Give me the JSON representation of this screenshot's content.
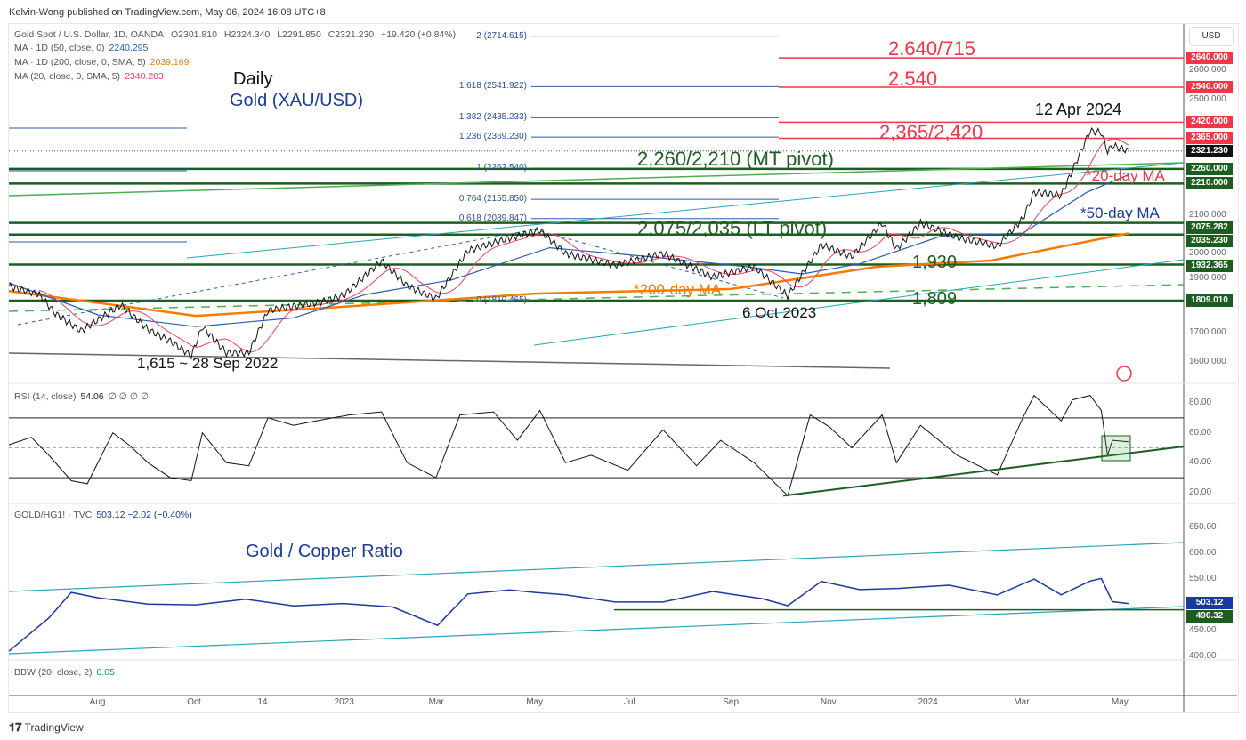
{
  "header": {
    "published": "Kelvin-Wong published on TradingView.com, May 06, 2024 16:08 UTC+8"
  },
  "legend": {
    "symbol": "Gold Spot / U.S. Dollar, 1D, OANDA",
    "open": "O2301.810",
    "high": "H2324.340",
    "low": "L2291.850",
    "close": "C2321.230",
    "change": "+19.420 (+0.84%)",
    "ma50_label": "MA · 1D (50, close, 0)",
    "ma50_value": "2240.295",
    "ma200_label": "MA · 1D (200, close, 0, SMA, 5)",
    "ma200_value": "2039.169",
    "ma20_label": "MA (20, close, 0, SMA, 5)",
    "ma20_value": "2340.283",
    "rsi_label": "RSI (14, close)",
    "rsi_value": "54.06",
    "rsi_extra": "∅ ∅ ∅ ∅",
    "ratio_label": "GOLD/HG1! · TVC",
    "ratio_value": "503.12  −2.02 (−0.40%)",
    "bbw_label": "BBW (20, close, 2)",
    "bbw_value": "0.05"
  },
  "colors": {
    "ma20": "#f23b6b",
    "ma50": "#2a5db0",
    "ma200": "#f57c00",
    "red": "#f23645",
    "green": "#1b5e20",
    "teal": "#26a6b8",
    "ratio": "#1a3a9e"
  },
  "annotations": {
    "daily": "Daily",
    "title": "Gold (XAU/USD)",
    "r1": "2,640/715",
    "r2": "2,540",
    "r3": "2,365/2,420",
    "apr": "12 Apr 2024",
    "mt": "2,260/2,210 (MT pivot)",
    "ma20": "*20-day MA",
    "ma50": "*50-day MA",
    "lt": "2,075/2,035 (LT pivot)",
    "s1930": "1,930",
    "ma200": "*200-day MA",
    "s1809": "1,809",
    "oct": "6 Oct 2023",
    "sep": "1,615 ~ 28 Sep 2022",
    "ratio_title": "Gold / Copper Ratio"
  },
  "fib_levels": [
    {
      "label": "2 (2714.615)",
      "price": 2714.615
    },
    {
      "label": "1.618 (2541.922)",
      "price": 2541.922
    },
    {
      "label": "1.382 (2435.233)",
      "price": 2435.233
    },
    {
      "label": "1.236 (2369.230)",
      "price": 2369.23
    },
    {
      "label": "1 (2262.540)",
      "price": 2262.54
    },
    {
      "label": "0.764 (2155.850)",
      "price": 2155.85
    },
    {
      "label": "0.618 (2089.847)",
      "price": 2089.847
    },
    {
      "label": "0 (1810.465)",
      "price": 1810.465
    }
  ],
  "axis": {
    "currency": "USD",
    "price_ticks": [
      "2600.000",
      "2500.000",
      "2100.000",
      "2000.000",
      "1900.000",
      "1700.000",
      "1600.000"
    ],
    "price_tags": [
      {
        "label": "2640.000",
        "price": 2640,
        "color": "#f23645"
      },
      {
        "label": "2540.000",
        "price": 2540,
        "color": "#f23645"
      },
      {
        "label": "2420.000",
        "price": 2420,
        "color": "#f23645"
      },
      {
        "label": "2365.000",
        "price": 2365,
        "color": "#f23645"
      },
      {
        "label": "2321.230",
        "price": 2321.23,
        "color": "#111111"
      },
      {
        "label": "2260.000",
        "price": 2260,
        "color": "#1b5e20"
      },
      {
        "label": "2210.000",
        "price": 2210,
        "color": "#1b5e20"
      },
      {
        "label": "2075.282",
        "price": 2075.282,
        "color": "#1b5e20"
      },
      {
        "label": "2035.230",
        "price": 2035.23,
        "color": "#1b5e20"
      },
      {
        "label": "1932.365",
        "price": 1932.365,
        "color": "#1b5e20"
      },
      {
        "label": "1809.010",
        "price": 1809.01,
        "color": "#1b5e20"
      }
    ],
    "rsi_ticks": [
      "80.00",
      "60.00",
      "40.00",
      "20.00"
    ],
    "ratio_ticks": [
      "650.00",
      "600.00",
      "550.00",
      "450.00",
      "400.00"
    ],
    "ratio_tags": [
      {
        "label": "503.12",
        "value": 503.12,
        "color": "#1a3a9e"
      },
      {
        "label": "490.32",
        "value": 490.32,
        "color": "#1b5e20"
      }
    ],
    "time_labels": [
      {
        "label": "Aug",
        "date": "2022-08-01"
      },
      {
        "label": "Oct",
        "date": "2022-10-01"
      },
      {
        "label": "14",
        "date": "2022-11-14"
      },
      {
        "label": "2023",
        "date": "2023-01-01"
      },
      {
        "label": "Mar",
        "date": "2023-03-01"
      },
      {
        "label": "May",
        "date": "2023-05-01"
      },
      {
        "label": "Jul",
        "date": "2023-07-01"
      },
      {
        "label": "Sep",
        "date": "2023-09-01"
      },
      {
        "label": "Nov",
        "date": "2023-11-01"
      },
      {
        "label": "2024",
        "date": "2024-01-01"
      },
      {
        "label": "Mar",
        "date": "2024-03-01"
      },
      {
        "label": "May",
        "date": "2024-05-01"
      }
    ]
  },
  "footer": {
    "brand": "TradingView"
  },
  "chart_data": [
    {
      "type": "line",
      "title": "Gold Spot / U.S. Dollar, 1D",
      "ylabel": "USD",
      "ylim": [
        1550,
        2750
      ],
      "series": [
        {
          "name": "price",
          "points": [
            [
              "2022-06-06",
              1858
            ],
            [
              "2022-06-25",
              1830
            ],
            [
              "2022-07-05",
              1765
            ],
            [
              "2022-07-21",
              1705
            ],
            [
              "2022-08-15",
              1794
            ],
            [
              "2022-09-01",
              1710
            ],
            [
              "2022-09-15",
              1670
            ],
            [
              "2022-09-28",
              1620
            ],
            [
              "2022-10-05",
              1720
            ],
            [
              "2022-10-20",
              1630
            ],
            [
              "2022-11-03",
              1630
            ],
            [
              "2022-11-15",
              1775
            ],
            [
              "2022-12-01",
              1790
            ],
            [
              "2022-12-15",
              1800
            ],
            [
              "2023-01-01",
              1826
            ],
            [
              "2023-01-25",
              1945
            ],
            [
              "2023-02-10",
              1860
            ],
            [
              "2023-02-28",
              1815
            ],
            [
              "2023-03-20",
              1980
            ],
            [
              "2023-04-13",
              2020
            ],
            [
              "2023-05-04",
              2050
            ],
            [
              "2023-05-20",
              1970
            ],
            [
              "2023-06-20",
              1930
            ],
            [
              "2023-07-20",
              1970
            ],
            [
              "2023-08-20",
              1890
            ],
            [
              "2023-09-15",
              1925
            ],
            [
              "2023-10-06",
              1825
            ],
            [
              "2023-10-27",
              2000
            ],
            [
              "2023-11-15",
              1960
            ],
            [
              "2023-12-04",
              2075
            ],
            [
              "2023-12-13",
              1985
            ],
            [
              "2023-12-28",
              2075
            ],
            [
              "2024-01-20",
              2025
            ],
            [
              "2024-02-14",
              1995
            ],
            [
              "2024-03-01",
              2090
            ],
            [
              "2024-03-08",
              2180
            ],
            [
              "2024-03-25",
              2170
            ],
            [
              "2024-04-01",
              2255
            ],
            [
              "2024-04-12",
              2390
            ],
            [
              "2024-04-19",
              2385
            ],
            [
              "2024-04-23",
              2320
            ],
            [
              "2024-04-26",
              2340
            ],
            [
              "2024-05-06",
              2321.23
            ]
          ]
        },
        {
          "name": "MA50",
          "points": [
            [
              "2022-06-06",
              1870
            ],
            [
              "2022-08-01",
              1760
            ],
            [
              "2022-10-01",
              1720
            ],
            [
              "2022-12-01",
              1750
            ],
            [
              "2023-01-15",
              1830
            ],
            [
              "2023-03-10",
              1880
            ],
            [
              "2023-05-10",
              1990
            ],
            [
              "2023-07-10",
              1960
            ],
            [
              "2023-09-10",
              1925
            ],
            [
              "2023-10-15",
              1900
            ],
            [
              "2023-11-20",
              1935
            ],
            [
              "2024-01-10",
              2030
            ],
            [
              "2024-03-01",
              2040
            ],
            [
              "2024-04-10",
              2180
            ],
            [
              "2024-05-06",
              2240.295
            ]
          ]
        },
        {
          "name": "MA200",
          "points": [
            [
              "2022-06-06",
              1842
            ],
            [
              "2022-10-01",
              1757
            ],
            [
              "2023-01-01",
              1788
            ],
            [
              "2023-05-01",
              1833
            ],
            [
              "2023-09-01",
              1849
            ],
            [
              "2023-12-01",
              1925
            ],
            [
              "2024-02-10",
              1946
            ],
            [
              "2024-05-06",
              2039.169
            ]
          ]
        }
      ]
    },
    {
      "type": "line",
      "title": "RSI (14, close)",
      "ylim": [
        10,
        90
      ],
      "levels": [
        70,
        50,
        30
      ],
      "points": [
        [
          "2022-06-06",
          52
        ],
        [
          "2022-06-20",
          57
        ],
        [
          "2022-07-01",
          45
        ],
        [
          "2022-07-15",
          28
        ],
        [
          "2022-07-25",
          26
        ],
        [
          "2022-08-10",
          60
        ],
        [
          "2022-08-20",
          52
        ],
        [
          "2022-09-01",
          40
        ],
        [
          "2022-09-15",
          30
        ],
        [
          "2022-09-28",
          28
        ],
        [
          "2022-10-05",
          60
        ],
        [
          "2022-10-20",
          40
        ],
        [
          "2022-11-03",
          38
        ],
        [
          "2022-11-15",
          70
        ],
        [
          "2022-12-01",
          65
        ],
        [
          "2022-12-15",
          68
        ],
        [
          "2023-01-05",
          72
        ],
        [
          "2023-01-25",
          74
        ],
        [
          "2023-02-10",
          40
        ],
        [
          "2023-02-28",
          30
        ],
        [
          "2023-03-15",
          72
        ],
        [
          "2023-04-05",
          74
        ],
        [
          "2023-04-20",
          55
        ],
        [
          "2023-05-04",
          75
        ],
        [
          "2023-05-20",
          40
        ],
        [
          "2023-06-05",
          45
        ],
        [
          "2023-06-28",
          35
        ],
        [
          "2023-07-20",
          62
        ],
        [
          "2023-08-10",
          38
        ],
        [
          "2023-08-25",
          55
        ],
        [
          "2023-09-15",
          40
        ],
        [
          "2023-10-06",
          18
        ],
        [
          "2023-10-20",
          72
        ],
        [
          "2023-11-01",
          64
        ],
        [
          "2023-11-15",
          50
        ],
        [
          "2023-12-04",
          72
        ],
        [
          "2023-12-13",
          40
        ],
        [
          "2023-12-28",
          65
        ],
        [
          "2024-01-20",
          45
        ],
        [
          "2024-02-14",
          32
        ],
        [
          "2024-03-01",
          70
        ],
        [
          "2024-03-08",
          85
        ],
        [
          "2024-03-25",
          68
        ],
        [
          "2024-04-01",
          82
        ],
        [
          "2024-04-12",
          85
        ],
        [
          "2024-04-19",
          75
        ],
        [
          "2024-04-23",
          45
        ],
        [
          "2024-04-26",
          55
        ],
        [
          "2024-05-06",
          54.06
        ]
      ]
    },
    {
      "type": "line",
      "title": "Gold / Copper Ratio",
      "ylim": [
        390,
        670
      ],
      "points": [
        [
          "2022-06-06",
          410
        ],
        [
          "2022-07-01",
          470
        ],
        [
          "2022-07-15",
          530
        ],
        [
          "2022-08-01",
          510
        ],
        [
          "2022-09-01",
          500
        ],
        [
          "2022-10-01",
          505
        ],
        [
          "2022-11-01",
          505
        ],
        [
          "2022-12-01",
          500
        ],
        [
          "2023-01-01",
          505
        ],
        [
          "2023-02-01",
          490
        ],
        [
          "2023-03-01",
          465
        ],
        [
          "2023-03-20",
          520
        ],
        [
          "2023-04-15",
          525
        ],
        [
          "2023-05-01",
          530
        ],
        [
          "2023-05-20",
          515
        ],
        [
          "2023-06-20",
          505
        ],
        [
          "2023-07-20",
          510
        ],
        [
          "2023-08-20",
          520
        ],
        [
          "2023-09-20",
          515
        ],
        [
          "2023-10-06",
          500
        ],
        [
          "2023-10-27",
          540
        ],
        [
          "2023-11-20",
          535
        ],
        [
          "2023-12-15",
          530
        ],
        [
          "2024-01-15",
          535
        ],
        [
          "2024-02-14",
          525
        ],
        [
          "2024-03-08",
          545
        ],
        [
          "2024-03-25",
          520
        ],
        [
          "2024-04-12",
          550
        ],
        [
          "2024-04-19",
          545
        ],
        [
          "2024-04-26",
          510
        ],
        [
          "2024-05-06",
          503.12
        ]
      ]
    }
  ]
}
